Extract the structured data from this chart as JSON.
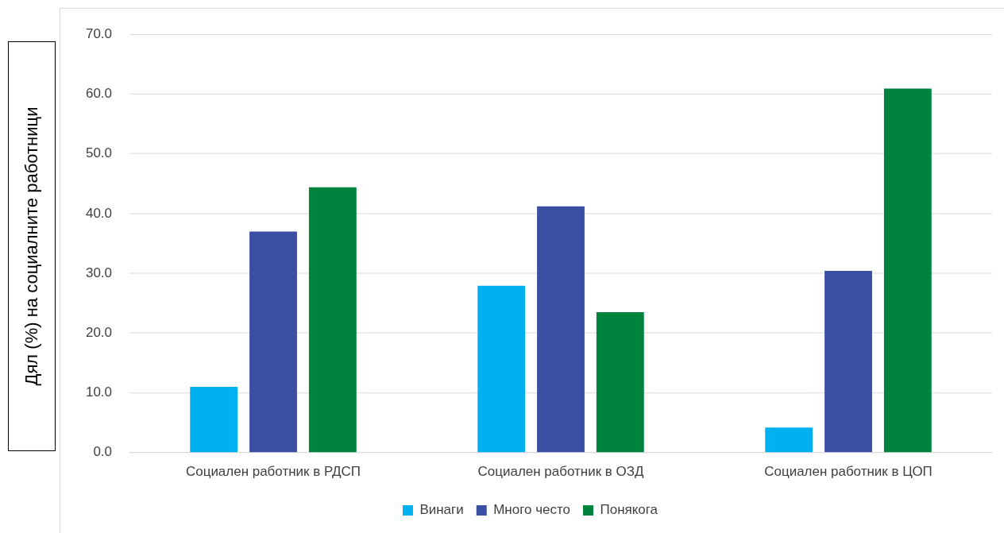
{
  "chart_data": {
    "type": "bar",
    "ylabel": "Дял (%) на социалните работници",
    "categories": [
      "Социален работник в РДСП",
      "Социален работник в ОЗД",
      "Социален работник в ЦОП"
    ],
    "series": [
      {
        "name": "Винаги",
        "color": "#00b0f0",
        "values": [
          11.0,
          27.9,
          4.2
        ]
      },
      {
        "name": "Много често",
        "color": "#3a4fa3",
        "values": [
          37.0,
          41.2,
          30.4
        ]
      },
      {
        "name": "Понякога",
        "color": "#00843d",
        "values": [
          44.4,
          23.5,
          60.9
        ]
      }
    ],
    "ylim": [
      0,
      70
    ],
    "yticks": [
      {
        "value": 0,
        "label": "0.0"
      },
      {
        "value": 10,
        "label": "10.0"
      },
      {
        "value": 20,
        "label": "20.0"
      },
      {
        "value": 30,
        "label": "30.0"
      },
      {
        "value": 40,
        "label": "40.0"
      },
      {
        "value": 50,
        "label": "50.0"
      },
      {
        "value": 60,
        "label": "60.0"
      },
      {
        "value": 70,
        "label": "70.0"
      }
    ],
    "grid": "y",
    "legend": "bottom"
  }
}
